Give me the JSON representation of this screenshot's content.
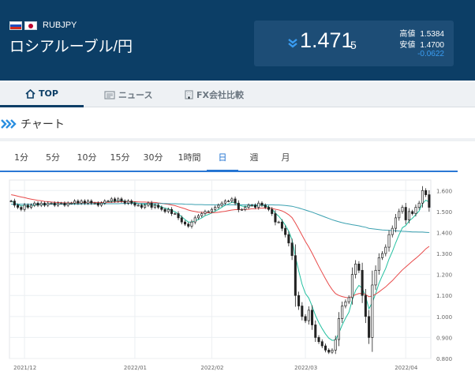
{
  "header": {
    "pair_code": "RUBJPY",
    "pair_name": "ロシアルーブル/円",
    "price_main": "1.471",
    "price_small": "5",
    "high_label": "高値",
    "high_value": "1.5384",
    "low_label": "安値",
    "low_value": "1.4700",
    "change": "-0.0622",
    "down_icon": "double-chevron-down-icon"
  },
  "tabs": [
    {
      "label": "TOP",
      "icon": "home-icon",
      "active": true
    },
    {
      "label": "ニュース",
      "icon": "newspaper-icon",
      "active": false
    },
    {
      "label": "FX会社比較",
      "icon": "building-icon",
      "active": false
    }
  ],
  "section": {
    "title": "チャート",
    "icon": "double-chevron-right-icon"
  },
  "periods": [
    {
      "label": "1分",
      "active": false
    },
    {
      "label": "5分",
      "active": false
    },
    {
      "label": "10分",
      "active": false
    },
    {
      "label": "15分",
      "active": false
    },
    {
      "label": "30分",
      "active": false
    },
    {
      "label": "1時間",
      "active": false
    },
    {
      "label": "日",
      "active": true
    },
    {
      "label": "週",
      "active": false
    },
    {
      "label": "月",
      "active": false
    }
  ],
  "colors": {
    "header_bg": "#0c3e66",
    "accent": "#1a6fd0",
    "change": "#3a9df2",
    "ma_short": "#24c0a0",
    "ma_mid": "#e84a4a",
    "ma_long": "#3aa0b0"
  },
  "chart_data": {
    "type": "candlestick",
    "ylim": [
      0.8,
      1.65
    ],
    "yticks": [
      "1.600",
      "1.500",
      "1.400",
      "1.300",
      "1.200",
      "1.100",
      "1.000",
      "0.900",
      "0.800"
    ],
    "ytick_values": [
      1.6,
      1.5,
      1.4,
      1.3,
      1.2,
      1.1,
      1.0,
      0.9,
      0.8
    ],
    "xticks": [
      {
        "label": "2021/12",
        "index": 4
      },
      {
        "label": "2022/01",
        "index": 37
      },
      {
        "label": "2022/02",
        "index": 60
      },
      {
        "label": "2022/03",
        "index": 88
      },
      {
        "label": "2022/04",
        "index": 118
      }
    ],
    "close": [
      1.55,
      1.53,
      1.52,
      1.51,
      1.53,
      1.52,
      1.53,
      1.54,
      1.53,
      1.54,
      1.53,
      1.54,
      1.54,
      1.53,
      1.54,
      1.54,
      1.53,
      1.54,
      1.54,
      1.55,
      1.54,
      1.55,
      1.54,
      1.55,
      1.54,
      1.54,
      1.53,
      1.54,
      1.55,
      1.55,
      1.56,
      1.55,
      1.56,
      1.55,
      1.54,
      1.55,
      1.54,
      1.53,
      1.53,
      1.52,
      1.53,
      1.54,
      1.52,
      1.53,
      1.52,
      1.51,
      1.5,
      1.51,
      1.49,
      1.49,
      1.47,
      1.45,
      1.44,
      1.43,
      1.45,
      1.47,
      1.48,
      1.49,
      1.5,
      1.5,
      1.51,
      1.52,
      1.53,
      1.54,
      1.55,
      1.55,
      1.56,
      1.54,
      1.51,
      1.51,
      1.52,
      1.53,
      1.53,
      1.52,
      1.54,
      1.53,
      1.52,
      1.51,
      1.49,
      1.45,
      1.45,
      1.42,
      1.39,
      1.35,
      1.29,
      1.1,
      1.05,
      1.0,
      0.98,
      1.03,
      0.96,
      0.9,
      0.88,
      0.86,
      0.84,
      0.83,
      0.84,
      0.89,
      0.99,
      1.05,
      1.07,
      1.09,
      1.2,
      1.25,
      1.22,
      1.1,
      1.0,
      0.9,
      1.15,
      1.22,
      1.28,
      1.3,
      1.33,
      1.39,
      1.42,
      1.47,
      1.5,
      1.52,
      1.46,
      1.5,
      1.49,
      1.52,
      1.54,
      1.6,
      1.58,
      1.52
    ],
    "series": [
      {
        "name": "MA short",
        "values": [
          1.55,
          1.54,
          1.533,
          1.527,
          1.528,
          1.524,
          1.526,
          1.53,
          1.532,
          1.534,
          1.533,
          1.535,
          1.537,
          1.536,
          1.536,
          1.536,
          1.535,
          1.537,
          1.538,
          1.54,
          1.54,
          1.542,
          1.542,
          1.544,
          1.543,
          1.542,
          1.539,
          1.54,
          1.542,
          1.545,
          1.549,
          1.549,
          1.551,
          1.551,
          1.549,
          1.548,
          1.546,
          1.542,
          1.539,
          1.535,
          1.534,
          1.536,
          1.532,
          1.532,
          1.528,
          1.522,
          1.515,
          1.513,
          1.505,
          1.499,
          1.488,
          1.475,
          1.462,
          1.45,
          1.45,
          1.455,
          1.462,
          1.47,
          1.48,
          1.486,
          1.493,
          1.501,
          1.51,
          1.52,
          1.53,
          1.536,
          1.544,
          1.543,
          1.533,
          1.526,
          1.524,
          1.526,
          1.528,
          1.525,
          1.53,
          1.53,
          1.527,
          1.522,
          1.512,
          1.492,
          1.478,
          1.458,
          1.435,
          1.406,
          1.366,
          1.286,
          1.217,
          1.154,
          1.109,
          1.088,
          1.05,
          1.005,
          0.971,
          0.942,
          0.917,
          0.897,
          0.886,
          0.888,
          0.921,
          0.96,
          0.992,
          1.02,
          1.078,
          1.124,
          1.148,
          1.135,
          1.095,
          1.037,
          1.066,
          1.109,
          1.158,
          1.194,
          1.229,
          1.273,
          1.31,
          1.351,
          1.389,
          1.423,
          1.433,
          1.455,
          1.468,
          1.485,
          1.503,
          1.537,
          1.554,
          1.545
        ]
      },
      {
        "name": "MA mid",
        "values": [
          1.58,
          1.577,
          1.573,
          1.569,
          1.566,
          1.562,
          1.559,
          1.556,
          1.553,
          1.551,
          1.548,
          1.547,
          1.545,
          1.544,
          1.543,
          1.542,
          1.541,
          1.541,
          1.541,
          1.541,
          1.541,
          1.542,
          1.542,
          1.542,
          1.543,
          1.543,
          1.543,
          1.543,
          1.543,
          1.544,
          1.544,
          1.545,
          1.546,
          1.547,
          1.547,
          1.547,
          1.547,
          1.547,
          1.546,
          1.545,
          1.545,
          1.544,
          1.544,
          1.543,
          1.541,
          1.539,
          1.536,
          1.534,
          1.531,
          1.528,
          1.523,
          1.518,
          1.513,
          1.507,
          1.503,
          1.5,
          1.497,
          1.496,
          1.495,
          1.494,
          1.494,
          1.495,
          1.496,
          1.499,
          1.501,
          1.504,
          1.507,
          1.509,
          1.509,
          1.509,
          1.51,
          1.511,
          1.513,
          1.513,
          1.515,
          1.516,
          1.516,
          1.516,
          1.515,
          1.511,
          1.508,
          1.503,
          1.495,
          1.485,
          1.471,
          1.445,
          1.417,
          1.387,
          1.357,
          1.331,
          1.302,
          1.27,
          1.239,
          1.209,
          1.18,
          1.152,
          1.128,
          1.109,
          1.1,
          1.095,
          1.091,
          1.089,
          1.096,
          1.104,
          1.109,
          1.11,
          1.105,
          1.094,
          1.098,
          1.106,
          1.117,
          1.129,
          1.141,
          1.156,
          1.171,
          1.188,
          1.205,
          1.222,
          1.236,
          1.25,
          1.264,
          1.277,
          1.291,
          1.306,
          1.322,
          1.334
        ]
      },
      {
        "name": "MA long",
        "values": [
          1.535,
          1.535,
          1.535,
          1.535,
          1.535,
          1.535,
          1.535,
          1.535,
          1.535,
          1.535,
          1.535,
          1.535,
          1.535,
          1.535,
          1.535,
          1.535,
          1.535,
          1.535,
          1.535,
          1.535,
          1.535,
          1.536,
          1.536,
          1.536,
          1.536,
          1.536,
          1.536,
          1.536,
          1.537,
          1.537,
          1.537,
          1.537,
          1.537,
          1.538,
          1.538,
          1.538,
          1.538,
          1.538,
          1.538,
          1.538,
          1.538,
          1.538,
          1.538,
          1.538,
          1.538,
          1.538,
          1.538,
          1.537,
          1.537,
          1.537,
          1.536,
          1.536,
          1.535,
          1.534,
          1.534,
          1.533,
          1.533,
          1.533,
          1.532,
          1.532,
          1.532,
          1.532,
          1.532,
          1.532,
          1.532,
          1.532,
          1.532,
          1.532,
          1.532,
          1.532,
          1.532,
          1.532,
          1.532,
          1.532,
          1.532,
          1.532,
          1.532,
          1.532,
          1.532,
          1.531,
          1.531,
          1.53,
          1.529,
          1.527,
          1.525,
          1.521,
          1.517,
          1.512,
          1.507,
          1.502,
          1.497,
          1.491,
          1.485,
          1.479,
          1.473,
          1.467,
          1.461,
          1.456,
          1.451,
          1.447,
          1.443,
          1.44,
          1.437,
          1.435,
          1.432,
          1.428,
          1.425,
          1.42,
          1.418,
          1.416,
          1.414,
          1.412,
          1.411,
          1.41,
          1.409,
          1.408,
          1.407,
          1.406,
          1.405,
          1.404,
          1.403,
          1.403,
          1.402,
          1.402,
          1.401,
          1.4
        ]
      }
    ]
  }
}
